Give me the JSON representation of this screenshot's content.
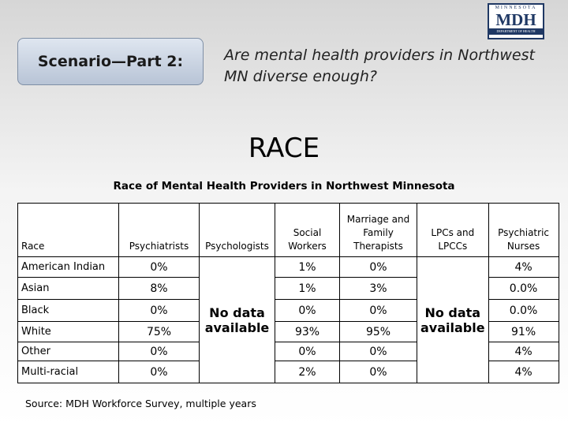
{
  "logo": {
    "state": "MINNESOTA",
    "abbr": "MDH",
    "department": "DEPARTMENT OF HEALTH"
  },
  "scenario_label": "Scenario—Part 2:",
  "question": "Are mental health providers in Northwest MN diverse enough?",
  "heading": "RACE",
  "table": {
    "title": "Race of Mental Health Providers in Northwest Minnesota",
    "columns": [
      "Race",
      "Psychiatrists",
      "Psychologists",
      "Social Workers",
      "Marriage and Family Therapists",
      "LPCs and LPCCs",
      "Psychiatric Nurses"
    ],
    "merged_cells": [
      {
        "column": 2,
        "text": "No data available"
      },
      {
        "column": 5,
        "text": "No data available"
      }
    ],
    "rows": [
      [
        "American Indian",
        "0%",
        "1%",
        "0%",
        "4%"
      ],
      [
        "Asian",
        "8%",
        "1%",
        "3%",
        "0.0%"
      ],
      [
        "Black",
        "0%",
        "0%",
        "0%",
        "0.0%"
      ],
      [
        "White",
        "75%",
        "93%",
        "95%",
        "91%"
      ],
      [
        "Other",
        "0%",
        "0%",
        "0%",
        "4%"
      ],
      [
        "Multi-racial",
        "0%",
        "2%",
        "0%",
        "4%"
      ]
    ],
    "source": "Source: MDH Workforce Survey, multiple years"
  }
}
